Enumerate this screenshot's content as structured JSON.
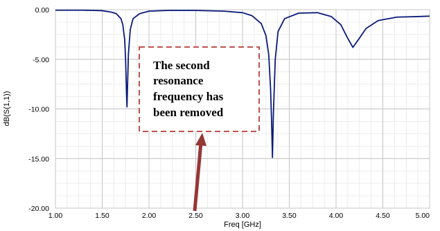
{
  "chart_data": {
    "type": "line",
    "xlabel": "Freq [GHz]",
    "ylabel": "dB(S(1,1))",
    "xlim": [
      1.0,
      5.0
    ],
    "ylim": [
      -20.0,
      0.0
    ],
    "x_ticks": [
      "1.00",
      "1.50",
      "2.00",
      "2.50",
      "3.00",
      "3.50",
      "4.00",
      "4.50",
      "5.00"
    ],
    "y_ticks": [
      "0.00",
      "-5.00",
      "-10.00",
      "-15.00",
      "-20.00"
    ],
    "grid": true,
    "series": [
      {
        "x": [
          1.0,
          1.3,
          1.5,
          1.6,
          1.65,
          1.7,
          1.72,
          1.74,
          1.75,
          1.76,
          1.765,
          1.77,
          1.78,
          1.8,
          1.83,
          1.9,
          2.0,
          2.2,
          2.5,
          2.8,
          3.0,
          3.1,
          3.2,
          3.25,
          3.28,
          3.3,
          3.31,
          3.32,
          3.33,
          3.35,
          3.38,
          3.45,
          3.6,
          3.8,
          3.95,
          4.05,
          4.12,
          4.18,
          4.24,
          4.32,
          4.45,
          4.65,
          4.85,
          5.0
        ],
        "y": [
          -0.05,
          -0.05,
          -0.1,
          -0.25,
          -0.4,
          -0.9,
          -1.5,
          -3.0,
          -5.0,
          -8.5,
          -9.8,
          -8.0,
          -4.5,
          -2.0,
          -0.9,
          -0.4,
          -0.15,
          -0.08,
          -0.08,
          -0.15,
          -0.3,
          -0.6,
          -1.4,
          -2.6,
          -4.5,
          -8.0,
          -11.0,
          -14.9,
          -10.5,
          -5.0,
          -2.2,
          -0.9,
          -0.35,
          -0.3,
          -0.7,
          -1.5,
          -2.8,
          -3.8,
          -3.0,
          -1.9,
          -1.1,
          -0.75,
          -0.7,
          -0.65
        ],
        "color": "#0a1a7a"
      }
    ],
    "annotation": {
      "lines": [
        "The second",
        "resonance",
        "frequency has",
        "been removed"
      ],
      "box_color": "#c0504d",
      "arrow_color": "#953735"
    }
  }
}
